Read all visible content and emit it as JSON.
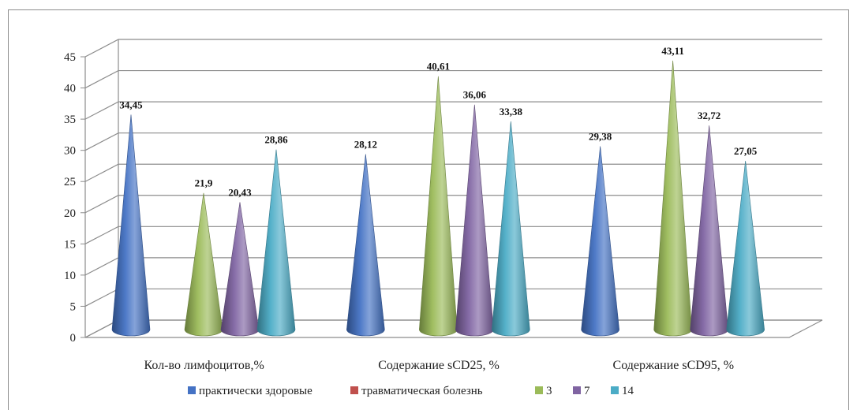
{
  "chart_data": {
    "type": "bar",
    "style": "3d-cone",
    "categories": [
      "Кол-во лимфоцитов,%",
      "Содержание sCD25, %",
      "Содержание sCD95, %"
    ],
    "ylim": [
      0,
      45
    ],
    "yticks": [
      0,
      5,
      10,
      15,
      20,
      25,
      30,
      35,
      40,
      45
    ],
    "legend_position": "bottom",
    "grid": true,
    "series": [
      {
        "name": "практически здоровые",
        "color": "#4472c4",
        "values": [
          34.45,
          28.12,
          29.38
        ],
        "labels": [
          "34,45",
          "28,12",
          "29,38"
        ]
      },
      {
        "name": "травматическая болезнь",
        "color": "#c0504d",
        "values": [
          null,
          null,
          null
        ],
        "labels": [
          "",
          "",
          ""
        ]
      },
      {
        "name": "3",
        "color": "#9bbb59",
        "values": [
          21.9,
          40.61,
          43.11
        ],
        "labels": [
          "21,9",
          "40,61",
          "43,11"
        ]
      },
      {
        "name": "7",
        "color": "#8064a2",
        "values": [
          20.43,
          36.06,
          32.72
        ],
        "labels": [
          "20,43",
          "36,06",
          "32,72"
        ]
      },
      {
        "name": "14",
        "color": "#4bacc6",
        "values": [
          28.86,
          33.38,
          27.05
        ],
        "labels": [
          "28,86",
          "33,38",
          "27,05"
        ]
      }
    ]
  }
}
